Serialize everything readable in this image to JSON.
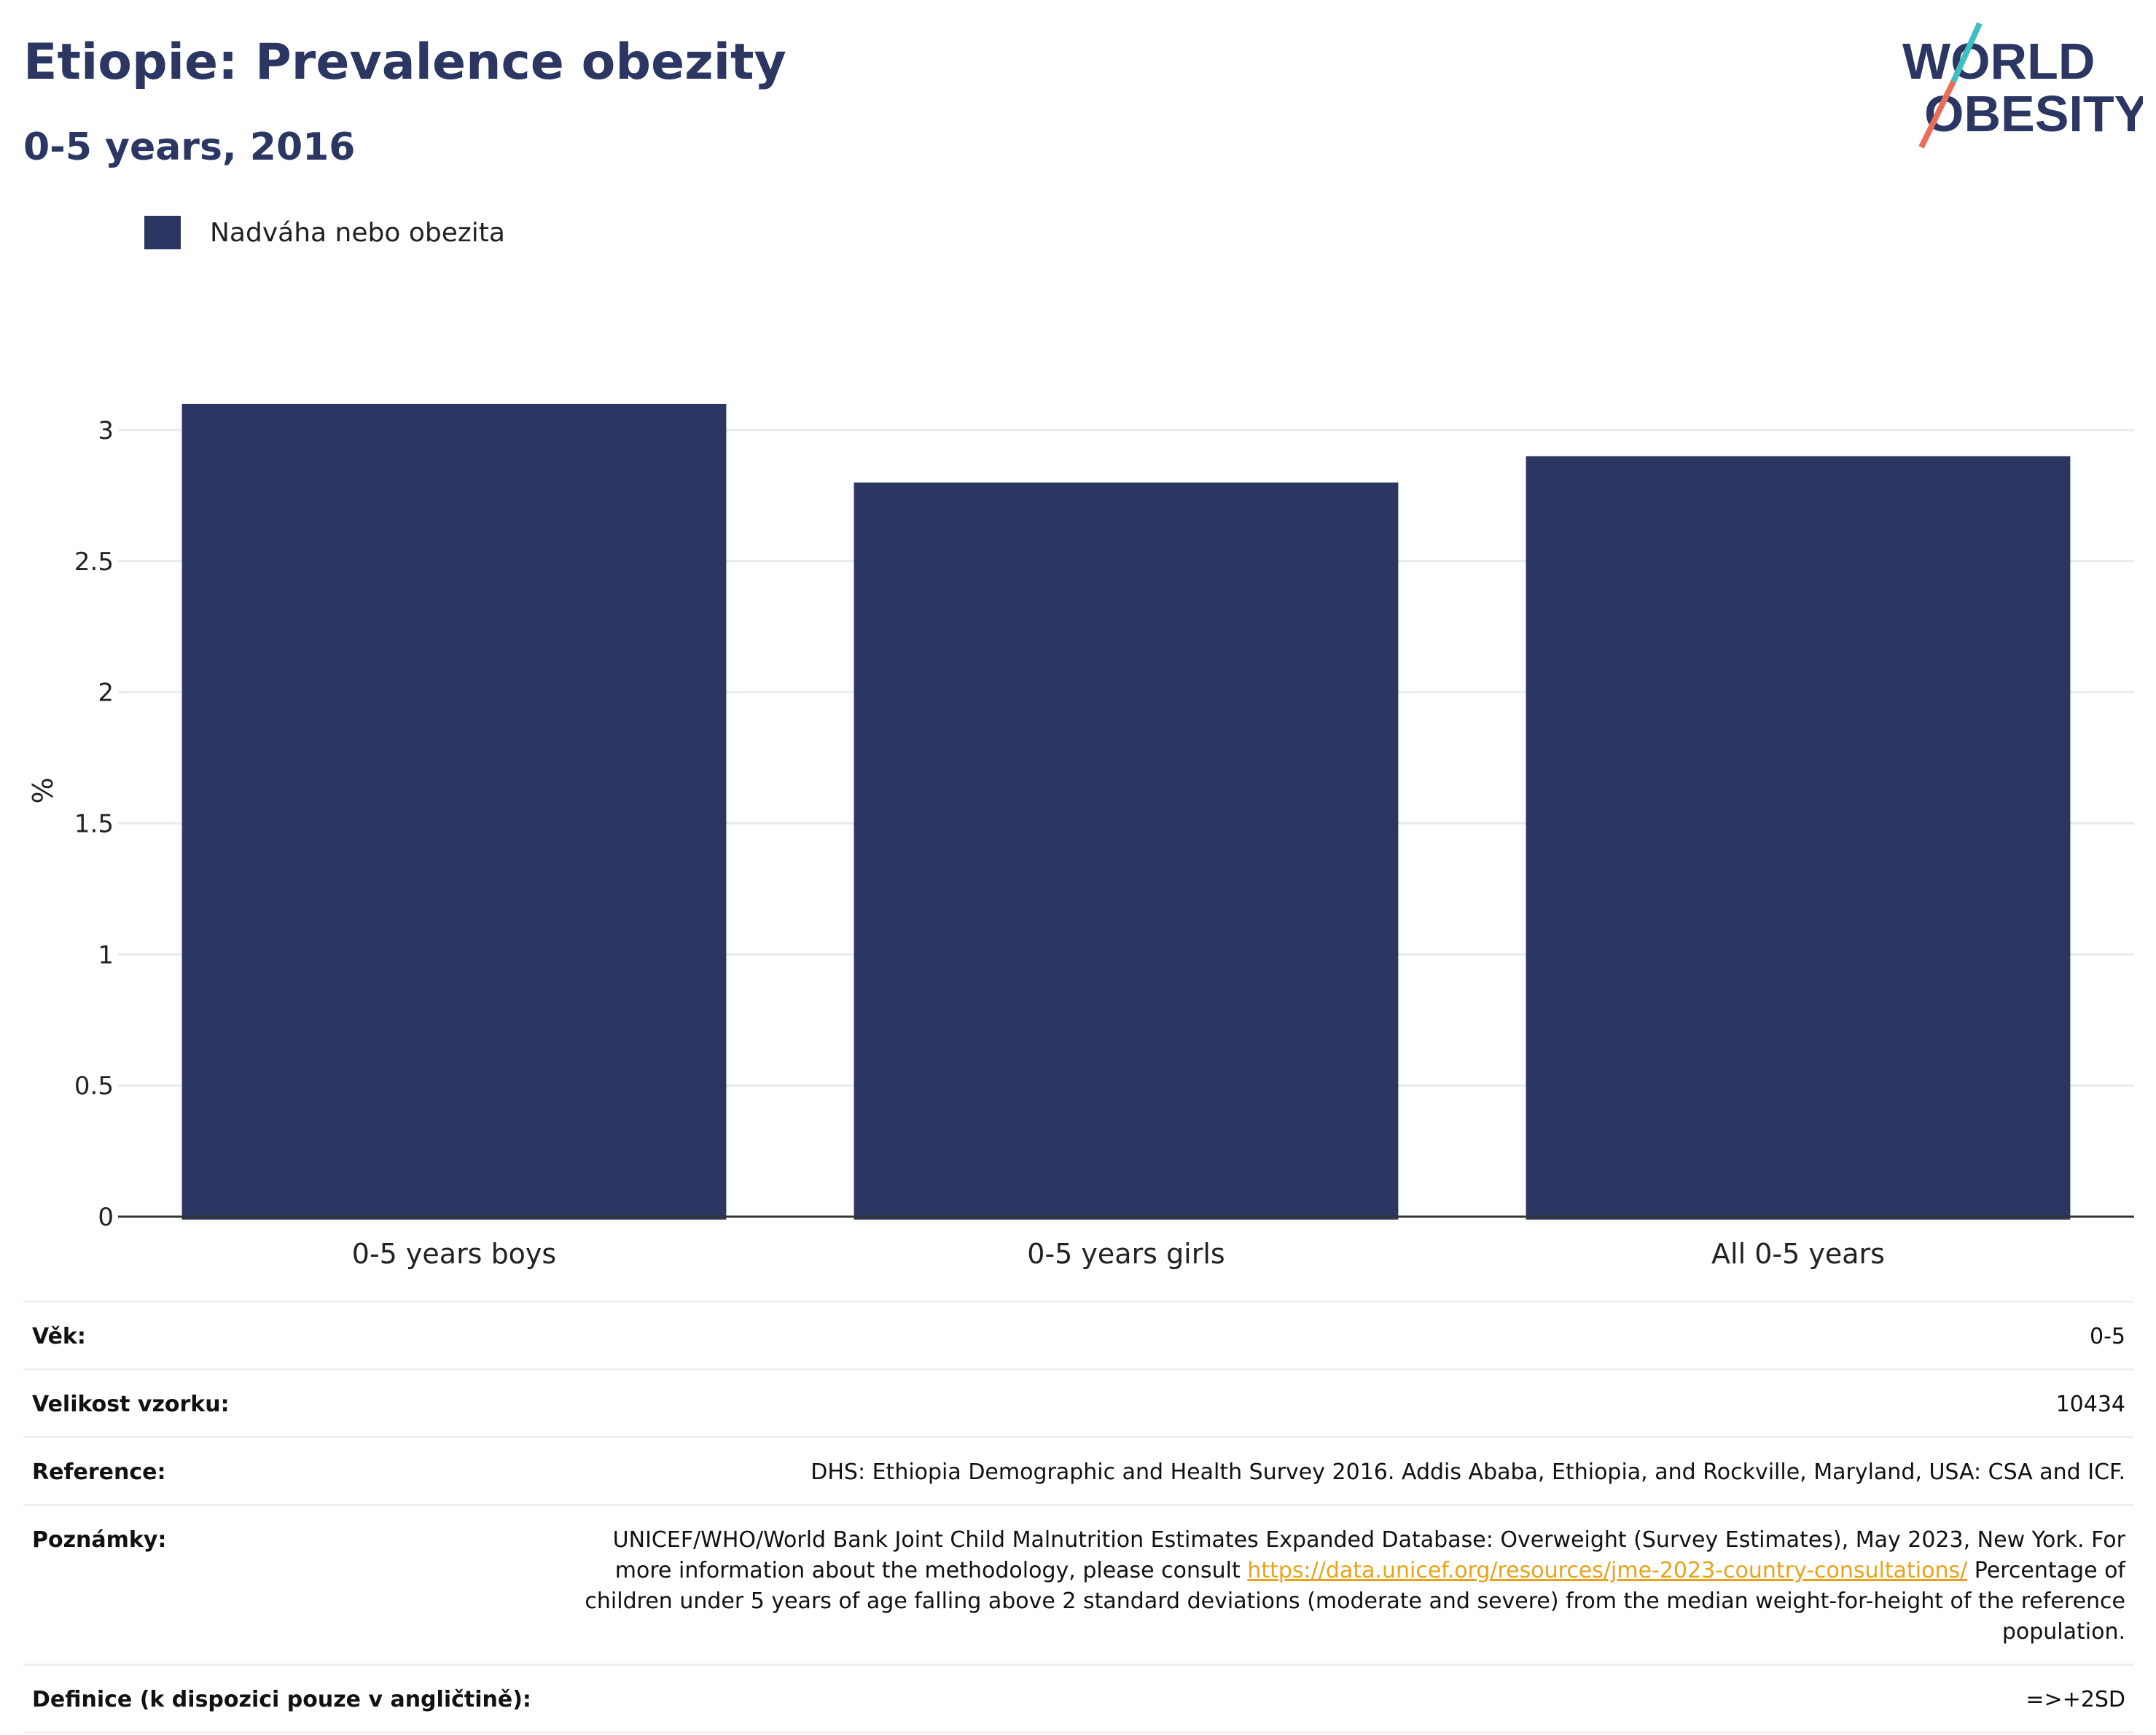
{
  "header": {
    "title": "Etiopie: Prevalence obezity",
    "subtitle": "0-5 years, 2016",
    "logo_text": "WORLD OBESITY"
  },
  "legend": {
    "items": [
      {
        "label": "Nadváha nebo obezita",
        "color": "#2b3663"
      }
    ]
  },
  "chart_data": {
    "type": "bar",
    "categories": [
      "0-5 years boys",
      "0-5 years girls",
      "All 0-5 years"
    ],
    "series": [
      {
        "name": "Nadváha nebo obezita",
        "values": [
          3.1,
          2.8,
          2.9
        ]
      }
    ],
    "ylabel": "%",
    "ylim": [
      0,
      3.25
    ],
    "yticks": [
      0,
      0.5,
      1,
      1.5,
      2,
      2.5,
      3
    ],
    "grid": true,
    "bar_color": "#2b3663"
  },
  "info": {
    "age_label": "Věk:",
    "age_value": "0-5",
    "sample_label": "Velikost vzorku:",
    "sample_value": "10434",
    "reference_label": "Reference:",
    "reference_value": "DHS: Ethiopia Demographic and Health Survey 2016. Addis Ababa, Ethiopia, and Rockville, Maryland, USA: CSA and ICF.",
    "notes_label": "Poznámky:",
    "notes_before_link": "UNICEF/WHO/World Bank Joint Child Malnutrition Estimates Expanded Database: Overweight (Survey Estimates), May 2023, New York. For more information about the methodology, please consult",
    "notes_link": "https://data.unicef.org/resources/jme-2023-country-consultations/",
    "notes_after_link": "Percentage of children under 5 years of age falling above 2 standard deviations (moderate and severe) from the median weight-for-height of the reference population.",
    "definition_label": "Definice (k dispozici pouze v angličtině):",
    "definition_value": "=>+2SD"
  }
}
